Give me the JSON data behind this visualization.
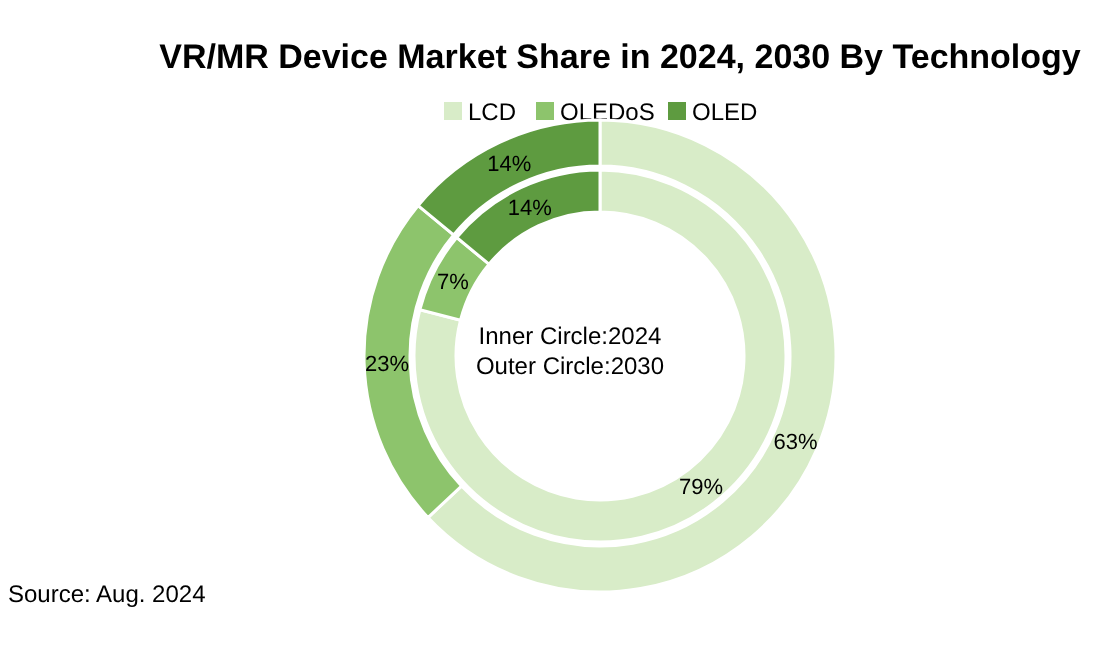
{
  "chart_data": {
    "type": "donut",
    "title": "VR/MR Device Market Share in 2024, 2030 By Technology",
    "categories": [
      "LCD",
      "OLEDoS",
      "OLED"
    ],
    "colors": [
      "#d8ecc8",
      "#8dc46c",
      "#5e9b40"
    ],
    "series": [
      {
        "values": [
          79,
          7,
          14
        ],
        "value_labels": [
          "79%",
          "7%",
          "14%"
        ]
      },
      {
        "values": [
          63,
          23,
          14
        ],
        "value_labels": [
          "63%",
          "23%",
          "14%"
        ]
      }
    ],
    "legend": "top",
    "annotations": [
      "Inner Circle:2024",
      "Outer Circle:2030",
      "Source: Aug. 2024"
    ]
  }
}
